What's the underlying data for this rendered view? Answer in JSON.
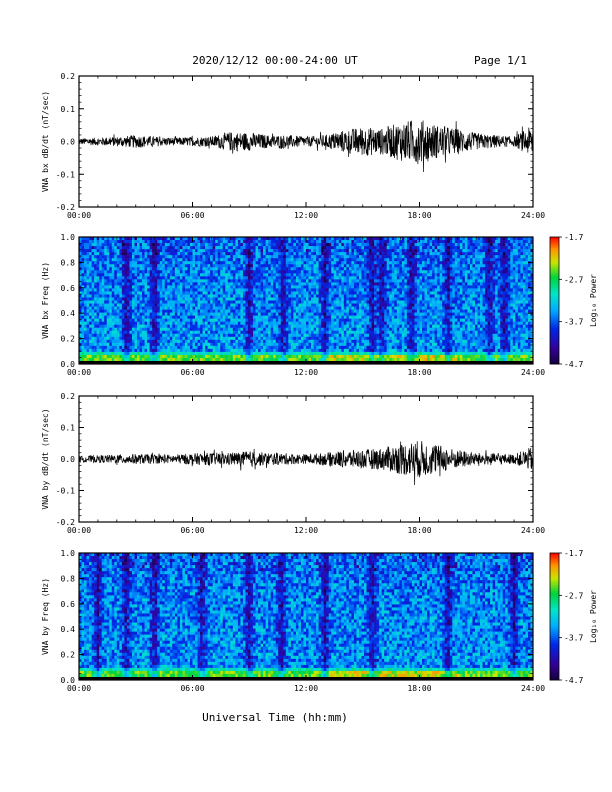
{
  "header": {
    "title": "2020/12/12  00:00-24:00 UT",
    "page": "Page 1/1"
  },
  "footer": {
    "xlabel": "Universal Time (hh:mm)"
  },
  "colorbar": {
    "label": "Log₁₀ Power",
    "ticks": [
      "-1.7",
      "-2.7",
      "-3.7",
      "-4.7"
    ]
  },
  "chart_data": [
    {
      "type": "line",
      "title": "",
      "ylabel": "VNA bx dB/dt (nT/sec)",
      "xlabel": "",
      "x_ticks": [
        "00:00",
        "06:00",
        "12:00",
        "18:00",
        "24:00"
      ],
      "y_ticks": [
        "0.2",
        "0.1",
        "0.0",
        "-0.1",
        "-0.2"
      ],
      "xlim": [
        0,
        24
      ],
      "ylim": [
        -0.2,
        0.2
      ],
      "envelope": {
        "x_hours": [
          0,
          1,
          2,
          3,
          4,
          5,
          6,
          7,
          8,
          9,
          10,
          11,
          12,
          13,
          14,
          15,
          16,
          17,
          18,
          19,
          20,
          21,
          22,
          23,
          24
        ],
        "amplitude": [
          0.01,
          0.012,
          0.015,
          0.02,
          0.015,
          0.012,
          0.014,
          0.016,
          0.03,
          0.028,
          0.02,
          0.02,
          0.015,
          0.02,
          0.035,
          0.045,
          0.04,
          0.06,
          0.07,
          0.05,
          0.04,
          0.025,
          0.02,
          0.015,
          0.05
        ]
      }
    },
    {
      "type": "heatmap",
      "title": "",
      "ylabel": "VNA bx Freq (Hz)",
      "xlabel": "",
      "x_ticks": [
        "00:00",
        "06:00",
        "12:00",
        "18:00",
        "24:00"
      ],
      "y_ticks": [
        "1.0",
        "0.8",
        "0.6",
        "0.4",
        "0.2",
        "0.0"
      ],
      "xlim": [
        0,
        24
      ],
      "ylim": [
        0,
        1.0
      ],
      "zlim": [
        -4.7,
        -1.7
      ],
      "dark_bands_hours": [
        2.5,
        4.0,
        9.0,
        10.8,
        13.0,
        15.5,
        16.0,
        17.6,
        19.5,
        21.7,
        22.5
      ]
    },
    {
      "type": "line",
      "title": "",
      "ylabel": "VNA by dB/dt (nT/sec)",
      "xlabel": "",
      "x_ticks": [
        "00:00",
        "06:00",
        "12:00",
        "18:00",
        "24:00"
      ],
      "y_ticks": [
        "0.2",
        "0.1",
        "0.0",
        "-0.1",
        "-0.2"
      ],
      "xlim": [
        0,
        24
      ],
      "ylim": [
        -0.2,
        0.2
      ],
      "envelope": {
        "x_hours": [
          0,
          1,
          2,
          3,
          4,
          5,
          6,
          7,
          8,
          9,
          10,
          11,
          12,
          13,
          14,
          15,
          16,
          17,
          18,
          19,
          20,
          21,
          22,
          23,
          24
        ],
        "amplitude": [
          0.01,
          0.012,
          0.014,
          0.016,
          0.015,
          0.014,
          0.018,
          0.02,
          0.02,
          0.025,
          0.02,
          0.018,
          0.015,
          0.02,
          0.028,
          0.03,
          0.035,
          0.05,
          0.06,
          0.045,
          0.03,
          0.02,
          0.018,
          0.015,
          0.04
        ]
      }
    },
    {
      "type": "heatmap",
      "title": "",
      "ylabel": "VNA by Freq (Hz)",
      "xlabel": "",
      "x_ticks": [
        "00:00",
        "06:00",
        "12:00",
        "18:00",
        "24:00"
      ],
      "y_ticks": [
        "1.0",
        "0.8",
        "0.6",
        "0.4",
        "0.2",
        "0.0"
      ],
      "xlim": [
        0,
        24
      ],
      "ylim": [
        0,
        1.0
      ],
      "zlim": [
        -4.7,
        -1.7
      ],
      "dark_bands_hours": [
        1.0,
        2.5,
        4.0,
        6.5,
        9.0,
        10.7,
        13.0,
        15.5,
        19.5,
        23.0
      ]
    }
  ]
}
